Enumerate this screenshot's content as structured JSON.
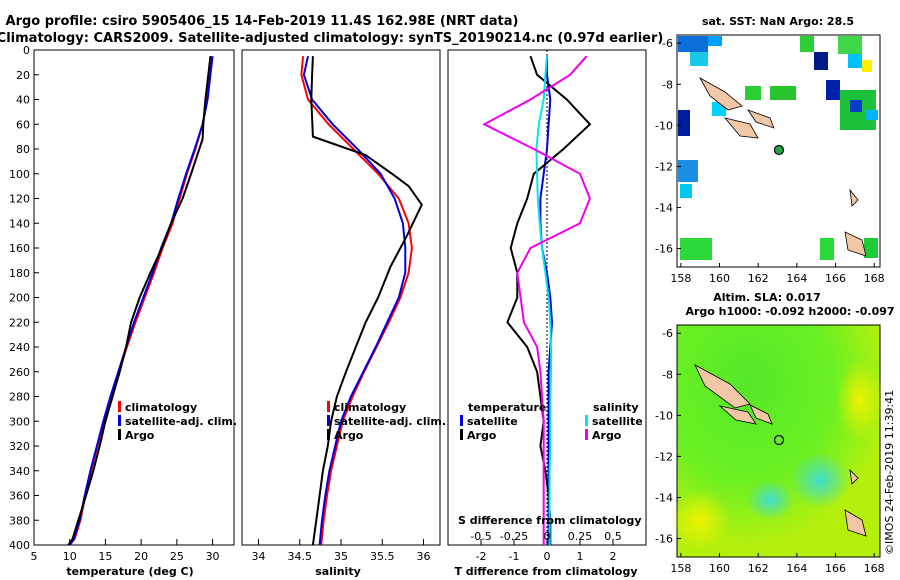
{
  "title_line1": "Argo profile: csiro 5905406_15 14-Feb-2019 11.4S 162.98E (NRT data)",
  "title_line2": "Climatology: CARS2009. Satellite-adjusted climatology: synTS_20190214.nc (0.97d earlier)",
  "watermark": "©IMOS 24-Feb-2019 11:39:41",
  "colors": {
    "climatology": "#ff0000",
    "satellite": "#0000dd",
    "argo": "#000000",
    "sat_salinity": "#00e5ee",
    "argo_salinity": "#ee00ee"
  },
  "chart_data": [
    {
      "id": "temperature",
      "type": "line",
      "xlabel": "temperature (deg C)",
      "xlim": [
        5,
        33
      ],
      "ylim": [
        0,
        400
      ],
      "yinvert": true,
      "xticks": [
        5,
        10,
        15,
        20,
        25,
        30
      ],
      "yticks": [
        0,
        20,
        40,
        60,
        80,
        100,
        120,
        140,
        160,
        180,
        200,
        220,
        240,
        260,
        280,
        300,
        320,
        340,
        360,
        380,
        400
      ],
      "legend": [
        "climatology",
        "satellite-adj. clim.",
        "Argo"
      ],
      "series": [
        {
          "name": "climatology",
          "color": "climatology",
          "x": [
            29.8,
            29.5,
            29.2,
            28.6,
            27.6,
            26.4,
            25.4,
            24.4,
            23.0,
            21.8,
            20.5,
            19.2,
            18.0,
            16.9,
            15.8,
            14.8,
            13.9,
            13.0,
            12.2,
            11.5,
            10.7,
            10.0
          ],
          "y": [
            5,
            20,
            40,
            60,
            80,
            100,
            120,
            140,
            160,
            180,
            200,
            220,
            240,
            260,
            280,
            300,
            320,
            340,
            360,
            380,
            395,
            400
          ]
        },
        {
          "name": "satellite-adj. clim.",
          "color": "satellite",
          "x": [
            30.0,
            29.7,
            29.3,
            28.6,
            27.5,
            26.3,
            25.2,
            24.2,
            22.8,
            21.6,
            20.3,
            19.0,
            17.9,
            16.8,
            15.7,
            14.7,
            13.8,
            12.9,
            12.1,
            11.4,
            10.6,
            10.0
          ],
          "y": [
            5,
            20,
            40,
            60,
            80,
            100,
            120,
            140,
            160,
            180,
            200,
            220,
            240,
            260,
            280,
            300,
            320,
            340,
            360,
            380,
            395,
            400
          ]
        },
        {
          "name": "Argo",
          "color": "argo",
          "x": [
            29.7,
            29.4,
            29.0,
            28.7,
            28.6,
            27.0,
            25.8,
            24.2,
            22.9,
            21.3,
            19.8,
            18.6,
            17.9,
            17.0,
            16.0,
            15.0,
            14.2,
            13.3,
            12.3,
            11.2,
            10.4,
            9.8
          ],
          "y": [
            5,
            20,
            40,
            60,
            72,
            100,
            120,
            140,
            160,
            180,
            200,
            220,
            240,
            260,
            280,
            300,
            320,
            340,
            360,
            380,
            395,
            400
          ]
        }
      ]
    },
    {
      "id": "salinity",
      "type": "line",
      "xlabel": "salinity",
      "xlim": [
        33.8,
        36.2
      ],
      "ylim": [
        0,
        400
      ],
      "yinvert": true,
      "xticks": [
        34,
        34.5,
        35,
        35.5,
        36
      ],
      "legend": [
        "climatology",
        "satellite-adj. clim.",
        "Argo"
      ],
      "series": [
        {
          "name": "climatology",
          "color": "climatology",
          "x": [
            34.54,
            34.52,
            34.6,
            34.85,
            35.15,
            35.45,
            35.7,
            35.82,
            35.86,
            35.82,
            35.72,
            35.58,
            35.43,
            35.28,
            35.14,
            35.02,
            34.95,
            34.88,
            34.83,
            34.79,
            34.76
          ],
          "y": [
            5,
            20,
            40,
            60,
            80,
            100,
            120,
            140,
            160,
            180,
            200,
            220,
            240,
            260,
            280,
            300,
            320,
            340,
            360,
            380,
            400
          ]
        },
        {
          "name": "satellite-adj. clim.",
          "color": "satellite",
          "x": [
            34.6,
            34.55,
            34.65,
            34.9,
            35.2,
            35.48,
            35.65,
            35.75,
            35.78,
            35.78,
            35.7,
            35.56,
            35.42,
            35.27,
            35.12,
            35.0,
            34.93,
            34.86,
            34.81,
            34.77,
            34.74
          ],
          "y": [
            5,
            20,
            40,
            60,
            80,
            100,
            120,
            140,
            160,
            180,
            200,
            220,
            240,
            260,
            280,
            300,
            320,
            340,
            360,
            380,
            400
          ]
        },
        {
          "name": "Argo",
          "color": "argo",
          "x": [
            34.66,
            34.65,
            34.64,
            34.66,
            35.3,
            35.62,
            35.82,
            35.98,
            35.8,
            35.6,
            35.45,
            35.3,
            35.18,
            35.06,
            34.95,
            34.88,
            34.84,
            34.78,
            34.74,
            34.7,
            34.66
          ],
          "y": [
            5,
            20,
            40,
            70,
            85,
            100,
            110,
            125,
            150,
            175,
            200,
            220,
            240,
            260,
            280,
            300,
            320,
            340,
            360,
            380,
            400
          ]
        }
      ]
    },
    {
      "id": "difference",
      "type": "line",
      "xlabel": "T difference from climatology",
      "xlabel_top": "S difference from climatology",
      "xlim": [
        -3.0,
        3.0
      ],
      "ylim": [
        0,
        400
      ],
      "yinvert": true,
      "xticks": [
        -2,
        -1,
        0,
        1,
        2
      ],
      "xticks_top": [
        -0.5,
        -0.25,
        0,
        0.25,
        0.5
      ],
      "legend_temperature": {
        "title": "temperature",
        "items": [
          "satellite",
          "Argo"
        ]
      },
      "legend_salinity": {
        "title": "salinity",
        "items": [
          "satellite",
          "Argo"
        ]
      },
      "series": [
        {
          "name": "temperature satellite",
          "color": "satellite",
          "x": [
            0.0,
            0.0,
            0.1,
            0.05,
            0.0,
            -0.1,
            -0.2,
            -0.2,
            -0.15,
            0.0,
            0.1,
            0.15,
            0.1,
            0.05,
            0.05,
            0.05,
            0.05,
            0.05,
            0.05,
            0.05,
            0.05
          ],
          "y": [
            5,
            20,
            40,
            60,
            80,
            100,
            120,
            140,
            160,
            180,
            200,
            220,
            240,
            260,
            280,
            300,
            320,
            340,
            360,
            380,
            400
          ]
        },
        {
          "name": "temperature Argo",
          "color": "argo",
          "x": [
            -0.5,
            -0.3,
            0.6,
            1.3,
            0.5,
            -0.4,
            -0.6,
            -0.9,
            -1.1,
            -0.9,
            -0.9,
            -1.2,
            -0.6,
            -0.3,
            -0.2,
            -0.1,
            -0.2,
            -0.05,
            0.05,
            0.1,
            0.1
          ],
          "y": [
            5,
            20,
            40,
            60,
            80,
            100,
            120,
            140,
            160,
            180,
            200,
            220,
            240,
            260,
            280,
            300,
            320,
            340,
            360,
            380,
            400
          ]
        },
        {
          "name": "salinity satellite",
          "color": "sat_salinity",
          "x": [
            0.0,
            -0.05,
            -0.1,
            -0.25,
            -0.32,
            -0.3,
            -0.28,
            -0.22,
            -0.15,
            -0.05,
            0.05,
            0.1,
            0.12,
            0.12,
            0.1,
            0.1,
            0.1,
            0.08,
            0.08,
            0.08,
            0.08
          ],
          "y": [
            5,
            20,
            40,
            60,
            80,
            100,
            120,
            140,
            160,
            180,
            200,
            220,
            240,
            260,
            280,
            300,
            320,
            340,
            360,
            380,
            400
          ]
        },
        {
          "name": "salinity Argo",
          "color": "argo_salinity",
          "x": [
            1.2,
            0.7,
            -0.5,
            -1.9,
            -0.4,
            1.0,
            1.3,
            1.0,
            -0.5,
            -0.9,
            -0.8,
            -0.7,
            -0.3,
            -0.2,
            -0.15,
            -0.1,
            -0.1,
            -0.1,
            -0.1,
            -0.1,
            -0.1
          ],
          "y": [
            5,
            20,
            40,
            60,
            80,
            100,
            120,
            140,
            160,
            180,
            200,
            220,
            240,
            260,
            280,
            300,
            320,
            340,
            360,
            380,
            400
          ]
        }
      ]
    }
  ],
  "map_sst": {
    "title": "sat. SST: NaN Argo: 28.5",
    "xticks": [
      158,
      160,
      162,
      164,
      166,
      168
    ],
    "yticks": [
      -6,
      -8,
      -10,
      -12,
      -14,
      -16
    ],
    "xlim": [
      157.8,
      168.3
    ],
    "ylim": [
      -16.9,
      -5.6
    ],
    "argo_lon": 162.98,
    "argo_lat": -11.4
  },
  "map_sla": {
    "title": "Altim. SLA: 0.017",
    "subtitle": "Argo h1000: -0.092 h2000: -0.097",
    "xticks": [
      158,
      160,
      162,
      164,
      166,
      168
    ],
    "yticks": [
      -6,
      -8,
      -10,
      -12,
      -14,
      -16
    ],
    "xlim": [
      157.8,
      168.3
    ],
    "ylim": [
      -16.9,
      -5.6
    ],
    "argo_lon": 162.98,
    "argo_lat": -11.4
  }
}
